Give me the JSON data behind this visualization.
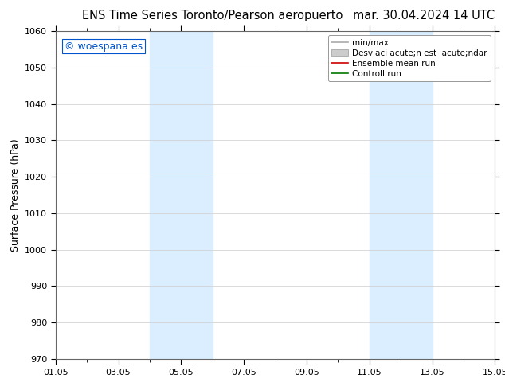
{
  "title_left": "ENS Time Series Toronto/Pearson aeropuerto",
  "title_right": "mar. 30.04.2024 14 UTC",
  "ylabel": "Surface Pressure (hPa)",
  "ylim": [
    970,
    1060
  ],
  "yticks": [
    970,
    980,
    990,
    1000,
    1010,
    1020,
    1030,
    1040,
    1050,
    1060
  ],
  "xlim_num": [
    0,
    14
  ],
  "xtick_labels": [
    "01.05",
    "03.05",
    "05.05",
    "07.05",
    "09.05",
    "11.05",
    "13.05",
    "15.05"
  ],
  "xtick_positions": [
    0,
    2,
    4,
    6,
    8,
    10,
    12,
    14
  ],
  "shaded_bands": [
    {
      "xmin": 3.0,
      "xmax": 5.0
    },
    {
      "xmin": 10.0,
      "xmax": 12.0
    }
  ],
  "shade_color": "#daeeff",
  "watermark_text": "© woespana.es",
  "watermark_color": "#0055cc",
  "legend_label_minmax": "min/max",
  "legend_label_std": "Desviaci acute;n est  acute;ndar",
  "legend_label_ensemble": "Ensemble mean run",
  "legend_label_control": "Controll run",
  "legend_color_minmax": "#aaaaaa",
  "legend_color_std": "#cccccc",
  "legend_color_ensemble": "#cc0000",
  "legend_color_control": "#007700",
  "bg_color": "#ffffff",
  "grid_color": "#cccccc",
  "title_fontsize": 10.5,
  "ylabel_fontsize": 9,
  "tick_fontsize": 8,
  "legend_fontsize": 7.5,
  "watermark_fontsize": 9
}
